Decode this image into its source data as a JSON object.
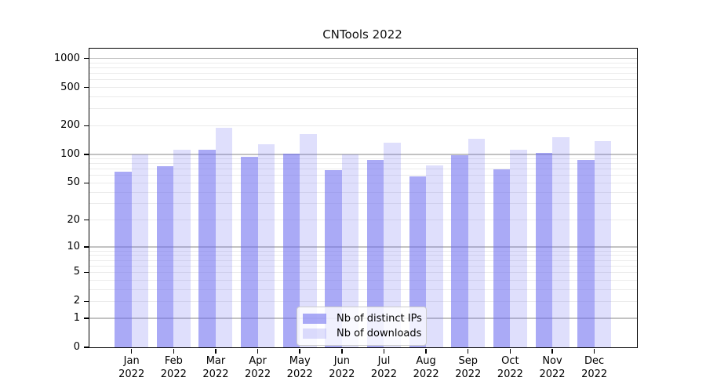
{
  "title": "CNTools 2022",
  "chart_data": {
    "type": "bar",
    "title": "CNTools 2022",
    "categories": [
      "Jan",
      "Feb",
      "Mar",
      "Apr",
      "May",
      "Jun",
      "Jul",
      "Aug",
      "Sep",
      "Oct",
      "Nov",
      "Dec"
    ],
    "category_year": "2022",
    "series": [
      {
        "name": "Nb of distinct IPs",
        "color": "#6c6cf0",
        "alpha": 0.58,
        "values": [
          66,
          75,
          113,
          94,
          102,
          68,
          87,
          59,
          99,
          70,
          103,
          87
        ]
      },
      {
        "name": "Nb of downloads",
        "color": "#6c6cf0",
        "alpha": 0.22,
        "values": [
          100,
          111,
          190,
          128,
          163,
          100,
          134,
          76,
          146,
          112,
          152,
          138
        ]
      }
    ],
    "xlabel": "",
    "ylabel": "",
    "yscale": "symlog",
    "ytick_labels": [
      0,
      1,
      2,
      5,
      10,
      20,
      50,
      100,
      200,
      500,
      1000
    ],
    "ymax": 1270,
    "major_gridlines": [
      1,
      10,
      100,
      1000
    ],
    "minor_gridlines": [
      2,
      3,
      4,
      5,
      6,
      7,
      8,
      9,
      20,
      30,
      40,
      50,
      60,
      70,
      80,
      90,
      200,
      300,
      400,
      500,
      600,
      700,
      800,
      900
    ],
    "grid": true,
    "legend_position": "lower center"
  },
  "colors": {
    "bar_base": "#6c6cf0",
    "major_grid": "#c2c2c2",
    "minor_grid": "#ebebeb",
    "spine": "#000000",
    "legend_border": "#cccccc"
  }
}
